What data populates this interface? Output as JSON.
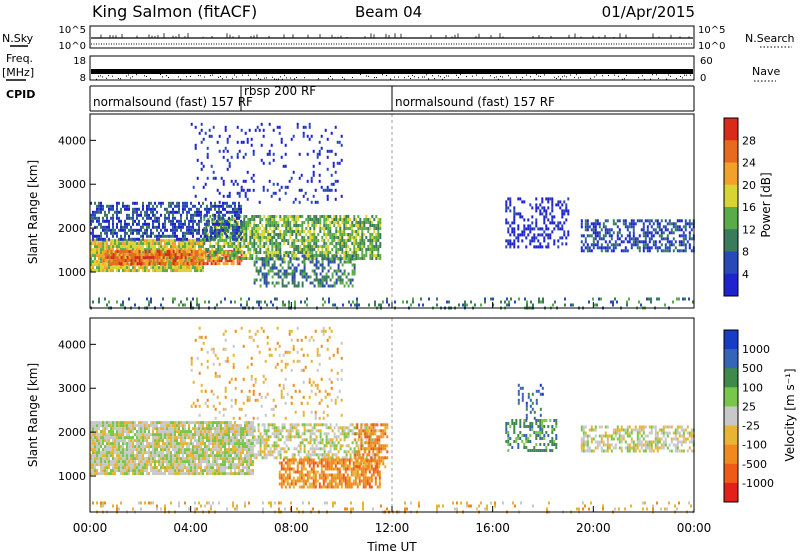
{
  "header": {
    "station": "King Salmon (fitACF)",
    "beam": "Beam 04",
    "date": "01/Apr/2015"
  },
  "side_labels": {
    "nsky": "N.Sky",
    "freq": "Freq.",
    "freq_unit": "[MHz]",
    "cpid": "CPID",
    "nsearch": "N.Search",
    "nave": "Nave"
  },
  "summary_axes": {
    "noise_left_ticks": [
      "10^5",
      "10^0"
    ],
    "noise_right_ticks": [
      "10^5",
      "10^0"
    ],
    "freq_left_ticks": [
      "18",
      "8"
    ],
    "nave_right_ticks": [
      "60",
      "0"
    ]
  },
  "cpid_segments": [
    {
      "label": "normalsound (fast) 157 RF",
      "start_hour": 0,
      "end_hour": 6
    },
    {
      "label": "rbsp 200 RF",
      "start_hour": 6,
      "end_hour": 12
    },
    {
      "label": "normalsound (fast) 157 RF",
      "start_hour": 12,
      "end_hour": 24
    }
  ],
  "chart_data": [
    {
      "type": "heatmap",
      "name": "power",
      "ylabel": "Slant Range [km]",
      "xlabel": "Time UT",
      "x_ticks": [
        "00:00",
        "04:00",
        "08:00",
        "12:00",
        "16:00",
        "20:00",
        "00:00"
      ],
      "x_tick_hours": [
        0,
        4,
        8,
        12,
        16,
        20,
        24
      ],
      "xlim_hours": [
        0,
        24
      ],
      "ylim": [
        180,
        4600
      ],
      "y_ticks": [
        1000,
        2000,
        3000,
        4000
      ],
      "colorbar": {
        "label": "Power [dB]",
        "ticks": [
          "4",
          "8",
          "12",
          "16",
          "20",
          "24",
          "28"
        ],
        "colors": [
          "#1f22cf",
          "#2a49b8",
          "#3b7a5a",
          "#5aab4a",
          "#d8d433",
          "#f2a12a",
          "#e86a1e",
          "#d92a1b"
        ]
      },
      "regions": [
        {
          "t0": 0.0,
          "t1": 4.5,
          "r0": 1050,
          "r1": 1750,
          "level": 4,
          "density": 0.95
        },
        {
          "t0": 0.5,
          "t1": 6.0,
          "r0": 1200,
          "r1": 1500,
          "level": 6,
          "density": 0.8
        },
        {
          "t0": 4.5,
          "t1": 11.5,
          "r0": 1300,
          "r1": 2300,
          "level": 3,
          "density": 0.7
        },
        {
          "t0": 0.0,
          "t1": 6.0,
          "r0": 1750,
          "r1": 2600,
          "level": 1,
          "density": 0.55
        },
        {
          "t0": 6.5,
          "t1": 10.5,
          "r0": 700,
          "r1": 1400,
          "level": 2,
          "density": 0.5
        },
        {
          "t0": 4.0,
          "t1": 10.0,
          "r0": 2600,
          "r1": 4400,
          "level": 0,
          "density": 0.12
        },
        {
          "t0": 16.5,
          "t1": 19.0,
          "r0": 1600,
          "r1": 2700,
          "level": 0,
          "density": 0.35
        },
        {
          "t0": 19.5,
          "t1": 24.0,
          "r0": 1500,
          "r1": 2200,
          "level": 1,
          "density": 0.55
        },
        {
          "t0": 0.0,
          "t1": 24.0,
          "r0": 200,
          "r1": 420,
          "level": 2,
          "density": 0.2
        }
      ]
    },
    {
      "type": "heatmap",
      "name": "velocity",
      "ylabel": "Slant Range [km]",
      "xlabel": "Time UT",
      "x_ticks": [
        "00:00",
        "04:00",
        "08:00",
        "12:00",
        "16:00",
        "20:00",
        "00:00"
      ],
      "x_tick_hours": [
        0,
        4,
        8,
        12,
        16,
        20,
        24
      ],
      "xlim_hours": [
        0,
        24
      ],
      "ylim": [
        180,
        4600
      ],
      "y_ticks": [
        1000,
        2000,
        3000,
        4000
      ],
      "colorbar": {
        "label": "Velocity [m s⁻¹]",
        "ticks": [
          "1000",
          "500",
          "100",
          "25",
          "-25",
          "-100",
          "-500",
          "-1000"
        ],
        "colors": [
          "#1a3cc4",
          "#3564b8",
          "#3f8a4a",
          "#79c64a",
          "#c8c8c8",
          "#e7b532",
          "#f08a1c",
          "#ef5a17",
          "#e3201b"
        ]
      },
      "regions": [
        {
          "t0": 0.0,
          "t1": 6.5,
          "r0": 1050,
          "r1": 2250,
          "level": 4,
          "density": 0.9
        },
        {
          "t0": 6.5,
          "t1": 11.5,
          "r0": 1400,
          "r1": 2200,
          "level": 4,
          "density": 0.55
        },
        {
          "t0": 7.5,
          "t1": 11.5,
          "r0": 750,
          "r1": 1400,
          "level": 6,
          "density": 0.7
        },
        {
          "t0": 10.5,
          "t1": 11.8,
          "r0": 1200,
          "r1": 2200,
          "level": 6,
          "density": 0.6
        },
        {
          "t0": 4.0,
          "t1": 10.0,
          "r0": 2300,
          "r1": 4400,
          "level": 5,
          "density": 0.1
        },
        {
          "t0": 16.5,
          "t1": 18.5,
          "r0": 1600,
          "r1": 2300,
          "level": 2,
          "density": 0.45
        },
        {
          "t0": 17.0,
          "t1": 18.0,
          "r0": 2300,
          "r1": 3100,
          "level": 1,
          "density": 0.25
        },
        {
          "t0": 19.5,
          "t1": 24.0,
          "r0": 1550,
          "r1": 2150,
          "level": 4,
          "density": 0.6
        },
        {
          "t0": 0.0,
          "t1": 24.0,
          "r0": 200,
          "r1": 420,
          "level": 5,
          "density": 0.15
        }
      ]
    }
  ]
}
